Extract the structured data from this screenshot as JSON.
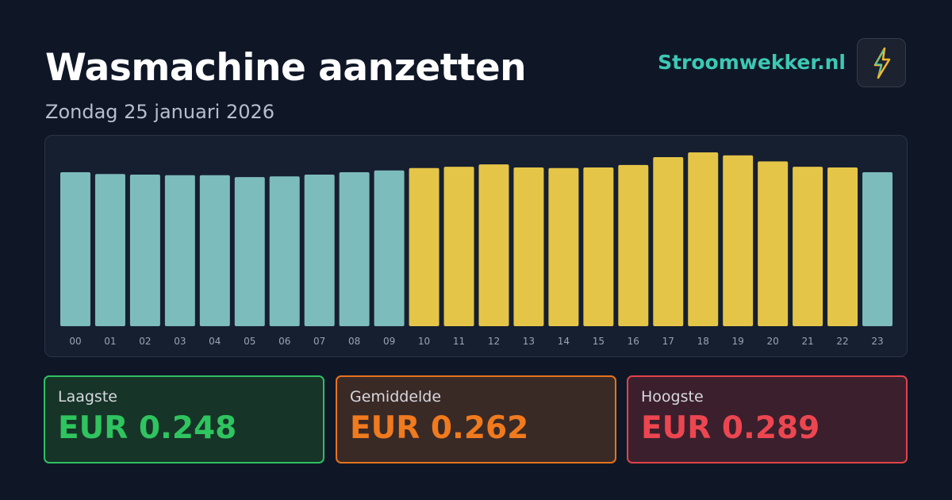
{
  "header": {
    "title": "Wasmachine aanzetten",
    "subtitle": "Zondag 25 januari 2026",
    "brand": "Stroomwekker.nl"
  },
  "chart_data": {
    "type": "bar",
    "categories": [
      "00",
      "01",
      "02",
      "03",
      "04",
      "05",
      "06",
      "07",
      "08",
      "09",
      "10",
      "11",
      "12",
      "13",
      "14",
      "15",
      "16",
      "17",
      "18",
      "19",
      "20",
      "21",
      "22",
      "23"
    ],
    "values": [
      0.256,
      0.253,
      0.252,
      0.251,
      0.251,
      0.248,
      0.249,
      0.252,
      0.256,
      0.259,
      0.263,
      0.265,
      0.269,
      0.264,
      0.263,
      0.264,
      0.268,
      0.281,
      0.289,
      0.284,
      0.274,
      0.265,
      0.264,
      0.256
    ],
    "colors": [
      "#7dbcbc",
      "#7dbcbc",
      "#7dbcbc",
      "#7dbcbc",
      "#7dbcbc",
      "#7dbcbc",
      "#7dbcbc",
      "#7dbcbc",
      "#7dbcbc",
      "#7dbcbc",
      "#e5c547",
      "#e5c547",
      "#e5c547",
      "#e5c547",
      "#e5c547",
      "#e5c547",
      "#e5c547",
      "#e5c547",
      "#e5c547",
      "#e5c547",
      "#e5c547",
      "#e5c547",
      "#e5c547",
      "#7dbcbc"
    ]
  },
  "cards": [
    {
      "label": "Laagste",
      "value": "EUR 0.248"
    },
    {
      "label": "Gemiddelde",
      "value": "EUR 0.262"
    },
    {
      "label": "Hoogste",
      "value": "EUR 0.289"
    }
  ]
}
